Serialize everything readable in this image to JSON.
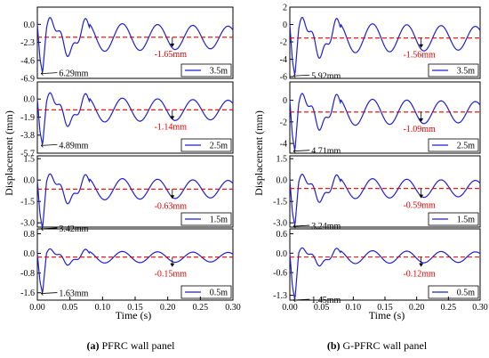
{
  "colors": {
    "curve": "#1f1fd6",
    "residual_line": "#e00000",
    "axis": "#000000"
  },
  "figure": {
    "left_caption_tag": "(a)",
    "left_caption_text": " PFRC wall panel",
    "right_caption_tag": "(b)",
    "right_caption_text": " G-PFRC wall panel",
    "ylabel": "Displacement (mm)",
    "xlabel": "Time (s)"
  },
  "chart_data": [
    {
      "type": "line",
      "title": "PFRC wall panel",
      "xlabel": "Time (s)",
      "ylabel": "Displacement (mm)",
      "xlim": [
        0.0,
        0.3
      ],
      "xticks": [
        "0.00",
        "0.05",
        "0.10",
        "0.15",
        "0.20",
        "0.25",
        "0.30"
      ],
      "panels": [
        {
          "legend": "3.5m",
          "ylim": [
            -6.9,
            2.2
          ],
          "yticks": [
            "0.0",
            "-2.3",
            "-4.6",
            "-6.9"
          ],
          "yticks_vals": [
            0.0,
            -2.3,
            -4.6,
            -6.9
          ],
          "peak": -6.29,
          "peak_label": "6.29mm",
          "residual": -1.65,
          "residual_label": "-1.65mm"
        },
        {
          "legend": "2.5m",
          "ylim": [
            -5.7,
            1.8
          ],
          "yticks": [
            "0.0",
            "-1.9",
            "-3.8",
            "-5.7"
          ],
          "yticks_vals": [
            0.0,
            -1.9,
            -3.8,
            -5.7
          ],
          "peak": -4.89,
          "peak_label": "4.89mm",
          "residual": -1.14,
          "residual_label": "-1.14mm"
        },
        {
          "legend": "1.5m",
          "ylim": [
            -3.3,
            1.7
          ],
          "yticks": [
            "1.5",
            "0.0",
            "-1.5",
            "-3.0"
          ],
          "yticks_vals": [
            1.5,
            0.0,
            -1.5,
            -3.0
          ],
          "peak": -3.42,
          "peak_label": "3.42mm",
          "residual": -0.63,
          "residual_label": "-0.63mm"
        },
        {
          "legend": "0.5m",
          "ylim": [
            -1.9,
            1.0
          ],
          "yticks": [
            "0.8",
            "0.0",
            "-0.8",
            "-1.6"
          ],
          "yticks_vals": [
            0.8,
            0.0,
            -0.8,
            -1.6
          ],
          "peak": -1.63,
          "peak_label": "1.63mm",
          "residual": -0.15,
          "residual_label": "-0.15mm"
        }
      ]
    },
    {
      "type": "line",
      "title": "G-PFRC wall panel",
      "xlabel": "Time (s)",
      "ylabel": "Displacement (mm)",
      "xlim": [
        0.0,
        0.3
      ],
      "xticks": [
        "0.00",
        "0.05",
        "0.10",
        "0.15",
        "0.20",
        "0.25",
        "0.30"
      ],
      "panels": [
        {
          "legend": "3.5m",
          "ylim": [
            -6.2,
            2.0
          ],
          "yticks": [
            "2",
            "0",
            "-2",
            "-4",
            "-6"
          ],
          "yticks_vals": [
            2,
            0,
            -2,
            -4,
            -6
          ],
          "peak": -5.92,
          "peak_label": "5.92mm",
          "residual": -1.56,
          "residual_label": "-1.56mm"
        },
        {
          "legend": "2.5m",
          "ylim": [
            -4.9,
            1.7
          ],
          "yticks": [
            "0",
            "-2",
            "-4"
          ],
          "yticks_vals": [
            0,
            -2,
            -4
          ],
          "peak": -4.71,
          "peak_label": "4.71mm",
          "residual": -1.09,
          "residual_label": "-1.09mm"
        },
        {
          "legend": "1.5m",
          "ylim": [
            -3.3,
            1.7
          ],
          "yticks": [
            "1.5",
            "0.0",
            "-1.5",
            "-3.0"
          ],
          "yticks_vals": [
            1.5,
            0.0,
            -1.5,
            -3.0
          ],
          "peak": -3.24,
          "peak_label": "3.24mm",
          "residual": -0.59,
          "residual_label": "-0.59mm"
        },
        {
          "legend": "0.5m",
          "ylim": [
            -1.45,
            0.75
          ],
          "yticks": [
            "0.6",
            "0.0",
            "-0.6",
            "-1.3"
          ],
          "yticks_vals": [
            0.6,
            0.0,
            -0.6,
            -1.3
          ],
          "peak": -1.45,
          "peak_label": "1.45mm",
          "residual": -0.12,
          "residual_label": "-0.12mm"
        }
      ]
    }
  ]
}
